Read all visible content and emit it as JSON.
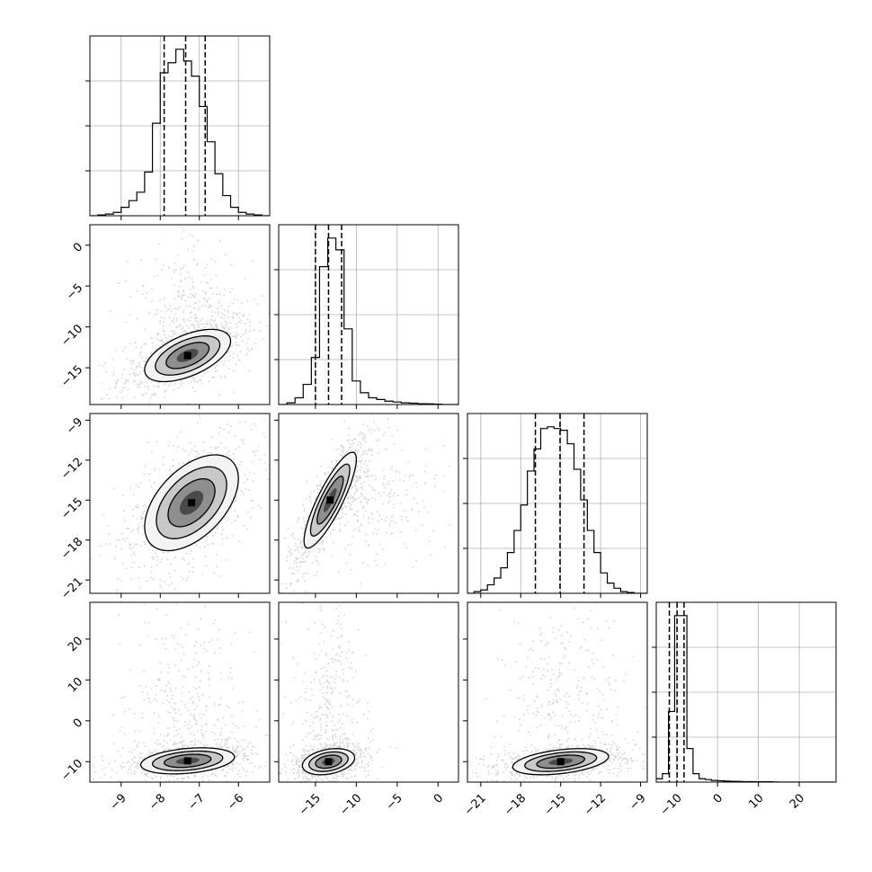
{
  "chart_data": {
    "type": "corner",
    "parameters": 4,
    "grid": true,
    "colors": {
      "frame": "#000000",
      "grid": "#b0b0b0",
      "points": "#7f7f7f",
      "hist": "#000000"
    },
    "axes": [
      {
        "range": [
          -9.8,
          -5.2
        ],
        "ticks": [
          -9,
          -8,
          -7,
          -6
        ],
        "tick_labels": [
          "−9",
          "−8",
          "−7",
          "−6"
        ]
      },
      {
        "range": [
          -19.5,
          2.5
        ],
        "ticks": [
          -15,
          -10,
          -5,
          0
        ],
        "tick_labels": [
          "−15",
          "−10",
          "−5",
          "0"
        ]
      },
      {
        "range": [
          -22,
          -8.5
        ],
        "ticks": [
          -21,
          -18,
          -15,
          -12,
          -9
        ],
        "tick_labels": [
          "−21",
          "−18",
          "−15",
          "−12",
          "−9"
        ]
      },
      {
        "range": [
          -15,
          29
        ],
        "ticks": [
          -10,
          0,
          10,
          20
        ],
        "tick_labels": [
          "−10",
          "0",
          "10",
          "20"
        ]
      }
    ],
    "marginals": [
      {
        "param": 0,
        "bin_edges": [
          -9.8,
          -9.6,
          -9.4,
          -9.2,
          -9.0,
          -8.8,
          -8.6,
          -8.4,
          -8.2,
          -8.0,
          -7.8,
          -7.6,
          -7.4,
          -7.2,
          -7.0,
          -6.8,
          -6.6,
          -6.4,
          -6.2,
          -6.0,
          -5.8,
          -5.6,
          -5.4,
          -5.2
        ],
        "counts": [
          0.0,
          0.005,
          0.01,
          0.02,
          0.05,
          0.09,
          0.14,
          0.26,
          0.55,
          0.85,
          0.91,
          0.99,
          0.92,
          0.83,
          0.65,
          0.44,
          0.25,
          0.12,
          0.05,
          0.02,
          0.01,
          0.005,
          0.0
        ],
        "quantiles": [
          -7.9,
          -7.35,
          -6.85
        ]
      },
      {
        "param": 1,
        "bin_edges": [
          -19.5,
          -18.5,
          -17.5,
          -16.5,
          -15.5,
          -14.5,
          -13.5,
          -12.5,
          -11.5,
          -10.5,
          -9.5,
          -8.5,
          -7.5,
          -6.5,
          -5.5,
          -4.5,
          -3.5,
          -2.5,
          -1.5,
          -0.5,
          0.5,
          1.5,
          2.5
        ],
        "counts": [
          0.0,
          0.01,
          0.04,
          0.12,
          0.28,
          0.82,
          0.99,
          0.92,
          0.45,
          0.14,
          0.07,
          0.04,
          0.03,
          0.02,
          0.015,
          0.01,
          0.008,
          0.005,
          0.004,
          0.002,
          0.0,
          0.0
        ],
        "quantiles": [
          -15.0,
          -13.4,
          -11.8
        ]
      },
      {
        "param": 2,
        "bin_edges": [
          -22,
          -21.5,
          -21,
          -20.5,
          -20,
          -19.5,
          -19,
          -18.5,
          -18,
          -17.5,
          -17,
          -16.5,
          -16,
          -15.5,
          -15,
          -14.5,
          -14,
          -13.5,
          -13,
          -12.5,
          -12,
          -11.5,
          -11,
          -10.5,
          -10,
          -9.5,
          -9,
          -8.5
        ],
        "counts": [
          0.0,
          0.01,
          0.02,
          0.05,
          0.09,
          0.15,
          0.24,
          0.37,
          0.52,
          0.72,
          0.85,
          0.97,
          0.98,
          0.97,
          0.96,
          0.88,
          0.73,
          0.55,
          0.37,
          0.24,
          0.12,
          0.06,
          0.03,
          0.01,
          0.005,
          0.0,
          0.0
        ],
        "quantiles": [
          -16.9,
          -15.05,
          -13.25
        ]
      },
      {
        "param": 3,
        "bin_edges": [
          -15,
          -13.5,
          -12,
          -10.5,
          -9,
          -7.5,
          -6,
          -4.5,
          -3,
          -1.5,
          0,
          1.5,
          3,
          4.5,
          6,
          7.5,
          9,
          10.5,
          12,
          13.5,
          15,
          16.5,
          18,
          19.5,
          21,
          22.5,
          24,
          25.5,
          27,
          28.5
        ],
        "counts": [
          0.02,
          0.05,
          0.42,
          0.99,
          0.99,
          0.2,
          0.05,
          0.02,
          0.015,
          0.01,
          0.008,
          0.006,
          0.005,
          0.004,
          0.003,
          0.003,
          0.002,
          0.002,
          0.002,
          0.001,
          0.0,
          0.0,
          0.0,
          0.0,
          0.0,
          0.0,
          0.0,
          0.0,
          0.0
        ],
        "quantiles": [
          -11.8,
          -9.9,
          -8.2
        ]
      }
    ],
    "joints": [
      {
        "x_param": 0,
        "y_param": 1,
        "mean": [
          -7.3,
          -13.5
        ],
        "std": [
          0.55,
          1.6
        ],
        "corr": 0.55,
        "tail": {
          "dir": "y",
          "extent": 13
        }
      },
      {
        "x_param": 0,
        "y_param": 2,
        "mean": [
          -7.2,
          -15.2
        ],
        "std": [
          0.6,
          1.8
        ],
        "corr": 0.5,
        "tail": null
      },
      {
        "x_param": 1,
        "y_param": 2,
        "mean": [
          -13.2,
          -15.0
        ],
        "std": [
          1.6,
          1.8
        ],
        "corr": 0.85,
        "tail": {
          "dir": "x",
          "extent": 12
        }
      },
      {
        "x_param": 0,
        "y_param": 3,
        "mean": [
          -7.3,
          -9.8
        ],
        "std": [
          0.6,
          1.6
        ],
        "corr": 0.3,
        "tail": {
          "dir": "y",
          "extent": 35
        }
      },
      {
        "x_param": 1,
        "y_param": 3,
        "mean": [
          -13.4,
          -10.0
        ],
        "std": [
          1.6,
          1.6
        ],
        "corr": 0.3,
        "tail": {
          "dir": "y",
          "extent": 35
        }
      },
      {
        "x_param": 2,
        "y_param": 3,
        "mean": [
          -15.0,
          -10.0
        ],
        "std": [
          1.8,
          1.6
        ],
        "corr": 0.4,
        "tail": {
          "dir": "y",
          "extent": 35
        }
      }
    ],
    "contour_levels_sigma": [
      0.5,
      1.0,
      1.5,
      2.0
    ]
  }
}
